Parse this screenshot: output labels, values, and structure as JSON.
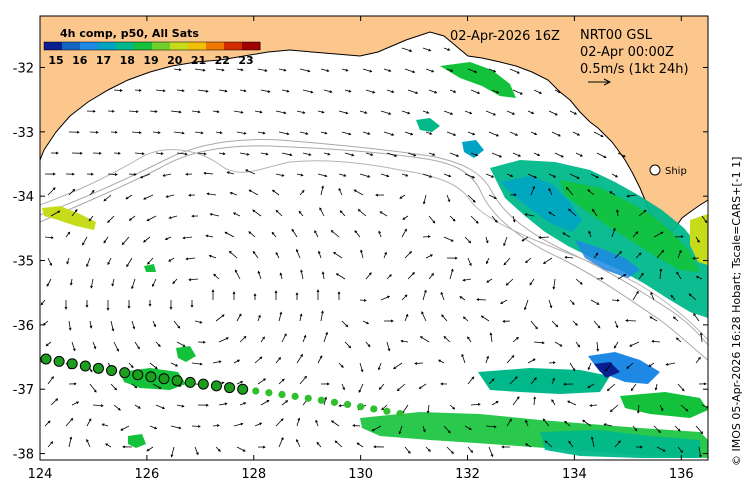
{
  "header": {
    "date_label": "02-Apr-2026 16Z",
    "product": "NRT00 GSL",
    "obs_time": "02-Apr 00:00Z",
    "scale_label": "0.5m/s (1kt 24h)"
  },
  "legend": {
    "title": "4h comp, p50, All Sats",
    "ticks": [
      "15",
      "16",
      "17",
      "18",
      "19",
      "20",
      "21",
      "22",
      "23"
    ],
    "colors": [
      "#0a1f8f",
      "#1565c0",
      "#1e88e5",
      "#00a3c4",
      "#00b88a",
      "#13c23a",
      "#6fd12a",
      "#c6dc1a",
      "#f0c000",
      "#f07800",
      "#d22c00",
      "#a00000"
    ]
  },
  "ship": {
    "label": "Ship"
  },
  "credit": "© IMOS 05-Apr-2026 16:28 Hobart; Tscale=CARS+[-1 1]",
  "colors": {
    "land": "#fcc78d",
    "bathymetry": "#a9a9a9",
    "track": "#1e9e1e",
    "arrow": "#000000"
  },
  "chart_data": {
    "type": "map",
    "x_axis": {
      "ticks": [
        "124",
        "126",
        "128",
        "130",
        "132",
        "134",
        "136"
      ],
      "range": [
        124,
        136.5
      ]
    },
    "y_axis": {
      "ticks": [
        "-32",
        "-33",
        "-34",
        "-35",
        "-36",
        "-37",
        "-38"
      ],
      "range": [
        -38.1,
        -31.2
      ]
    },
    "ship_position": [
      135.0,
      -33.6
    ]
  }
}
